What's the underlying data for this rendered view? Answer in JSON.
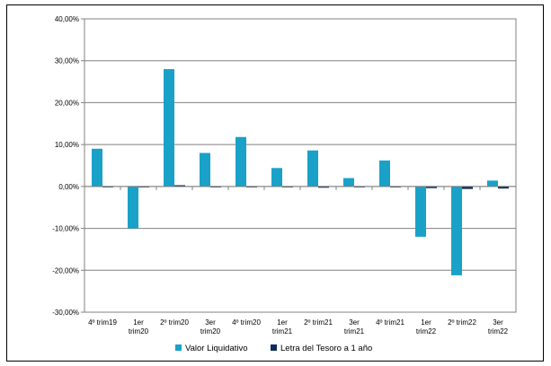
{
  "chart_data": {
    "type": "bar",
    "title": "",
    "xlabel": "",
    "ylabel": "",
    "ylim": [
      -30,
      40
    ],
    "y_ticks": [
      {
        "value": 40,
        "label": "40,00%"
      },
      {
        "value": 30,
        "label": "30,00%"
      },
      {
        "value": 20,
        "label": "20,00%"
      },
      {
        "value": 10,
        "label": "10,00%"
      },
      {
        "value": 0,
        "label": "0,00%"
      },
      {
        "value": -10,
        "label": "-10,00%"
      },
      {
        "value": -20,
        "label": "-20,00%"
      },
      {
        "value": -30,
        "label": "-30,00%"
      }
    ],
    "grid": true,
    "legend_position": "bottom",
    "categories": [
      [
        "4º trim19"
      ],
      [
        "1er",
        "trim20"
      ],
      [
        "2º trim20"
      ],
      [
        "3er",
        "trim20"
      ],
      [
        "4º trim20"
      ],
      [
        "1er",
        "trim21"
      ],
      [
        "2º trim21"
      ],
      [
        "3er",
        "trim21"
      ],
      [
        "4º trim21"
      ],
      [
        "1er",
        "trim22"
      ],
      [
        "2º trim22"
      ],
      [
        "3er",
        "trim22"
      ]
    ],
    "series": [
      {
        "name": "Valor Liquidativo",
        "color": "#1aa1c8",
        "values": [
          9.0,
          -10.0,
          28.0,
          8.0,
          11.8,
          4.4,
          8.6,
          2.0,
          6.2,
          -12.0,
          -21.2,
          1.4
        ]
      },
      {
        "name": "Letra del Tesoro a 1 año",
        "color": "#0f2d57",
        "values": [
          0.0,
          0.0,
          0.3,
          -0.1,
          -0.1,
          -0.2,
          -0.3,
          -0.2,
          -0.2,
          -0.4,
          -0.6,
          -0.5
        ]
      }
    ]
  }
}
